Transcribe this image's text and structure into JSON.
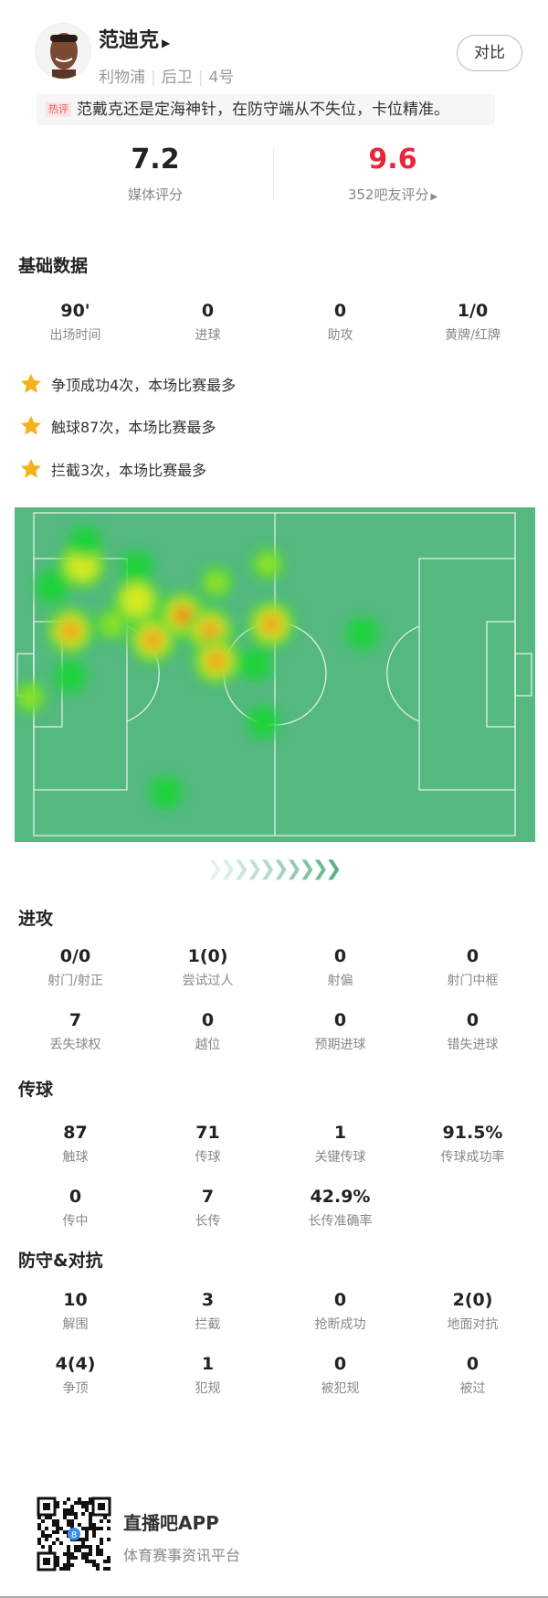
{
  "player": {
    "name": "范迪克",
    "team": "利物浦",
    "position": "后卫",
    "number": "4号",
    "compare_label": "对比"
  },
  "hot_comment": {
    "tag": "热评",
    "text": "范戴克还是定海神针，在防守端从不失位，卡位精准。"
  },
  "ratings": {
    "media_score": "7.2",
    "media_label": "媒体评分",
    "fan_score": "9.6",
    "fan_label": "352吧友评分"
  },
  "colors": {
    "fan_score": "#e8263a",
    "pitch": "#55b881",
    "accent": "#5ab185",
    "star": "#f6b21a"
  },
  "basic": {
    "title": "基础数据",
    "stats": [
      {
        "value": "90'",
        "label": "出场时间"
      },
      {
        "value": "0",
        "label": "进球"
      },
      {
        "value": "0",
        "label": "助攻"
      },
      {
        "value": "1/0",
        "label": "黄牌/红牌"
      }
    ]
  },
  "highlights": [
    "争顶成功4次，本场比赛最多",
    "触球87次，本场比赛最多",
    "拦截3次，本场比赛最多"
  ],
  "attack": {
    "title": "进攻",
    "stats": [
      {
        "value": "0/0",
        "label": "射门/射正"
      },
      {
        "value": "1(0)",
        "label": "尝试过人"
      },
      {
        "value": "0",
        "label": "射偏"
      },
      {
        "value": "0",
        "label": "射门中框"
      },
      {
        "value": "7",
        "label": "丢失球权"
      },
      {
        "value": "0",
        "label": "越位"
      },
      {
        "value": "0",
        "label": "预期进球"
      },
      {
        "value": "0",
        "label": "错失进球"
      }
    ]
  },
  "passing": {
    "title": "传球",
    "stats": [
      {
        "value": "87",
        "label": "触球"
      },
      {
        "value": "71",
        "label": "传球"
      },
      {
        "value": "1",
        "label": "关键传球"
      },
      {
        "value": "91.5%",
        "label": "传球成功率"
      },
      {
        "value": "0",
        "label": "传中"
      },
      {
        "value": "7",
        "label": "长传"
      },
      {
        "value": "42.9%",
        "label": "长传准确率"
      }
    ]
  },
  "defense": {
    "title": "防守&对抗",
    "stats": [
      {
        "value": "10",
        "label": "解围"
      },
      {
        "value": "3",
        "label": "拦截"
      },
      {
        "value": "0",
        "label": "抢断成功"
      },
      {
        "value": "2(0)",
        "label": "地面对抗"
      },
      {
        "value": "4(4)",
        "label": "争顶"
      },
      {
        "value": "1",
        "label": "犯规"
      },
      {
        "value": "0",
        "label": "被犯规"
      },
      {
        "value": "0",
        "label": "被过"
      }
    ]
  },
  "footer": {
    "app_name": "直播吧APP",
    "slogan": "体育赛事资讯平台"
  }
}
